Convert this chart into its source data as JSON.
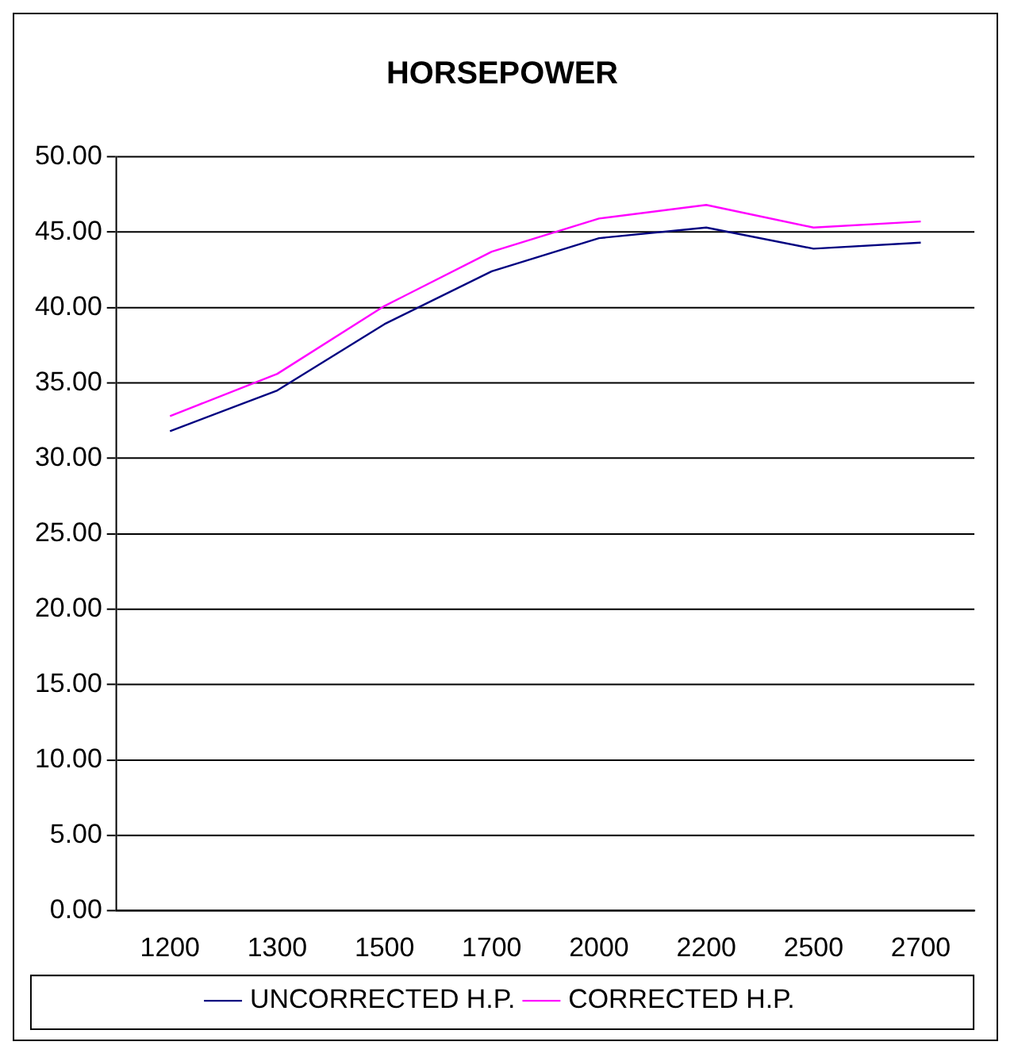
{
  "chart_data": {
    "type": "line",
    "title": "HORSEPOWER",
    "categories": [
      "1200",
      "1300",
      "1500",
      "1700",
      "2000",
      "2200",
      "2500",
      "2700"
    ],
    "series": [
      {
        "name": "UNCORRECTED H.P.",
        "color": "#000080",
        "values": [
          31.8,
          34.5,
          38.9,
          42.4,
          44.6,
          45.3,
          43.9,
          44.3
        ]
      },
      {
        "name": "CORRECTED H.P.",
        "color": "#ff00ff",
        "values": [
          32.8,
          35.6,
          40.1,
          43.7,
          45.9,
          46.8,
          45.3,
          45.7
        ]
      }
    ],
    "ylim": [
      0,
      50
    ],
    "yticks": [
      {
        "value": 0,
        "label": "0.00"
      },
      {
        "value": 5,
        "label": "5.00"
      },
      {
        "value": 10,
        "label": "10.00"
      },
      {
        "value": 15,
        "label": "15.00"
      },
      {
        "value": 20,
        "label": "20.00"
      },
      {
        "value": 25,
        "label": "25.00"
      },
      {
        "value": 30,
        "label": "30.00"
      },
      {
        "value": 35,
        "label": "35.00"
      },
      {
        "value": 40,
        "label": "40.00"
      },
      {
        "value": 45,
        "label": "45.00"
      },
      {
        "value": 50,
        "label": "50.00"
      }
    ],
    "grid": "y",
    "legend": "bottom",
    "marker": "none",
    "line_style": "solid"
  }
}
